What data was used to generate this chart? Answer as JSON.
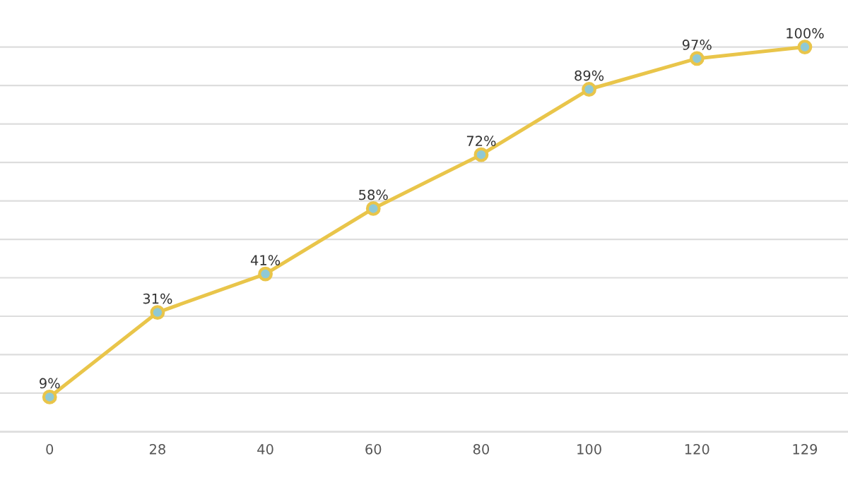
{
  "chart_data": {
    "type": "line",
    "categories": [
      "0",
      "28",
      "40",
      "60",
      "80",
      "100",
      "120",
      "129"
    ],
    "series": [
      {
        "color": "#e9c54a",
        "values": [
          9,
          31,
          41,
          58,
          72,
          89,
          97,
          100
        ],
        "value_labels": [
          "9%",
          "31%",
          "41%",
          "58%",
          "72%",
          "89%",
          "97%",
          "100%"
        ]
      }
    ],
    "tick_labels": "x",
    "grid": "y",
    "marker": "circle",
    "line_style": "solid"
  }
}
